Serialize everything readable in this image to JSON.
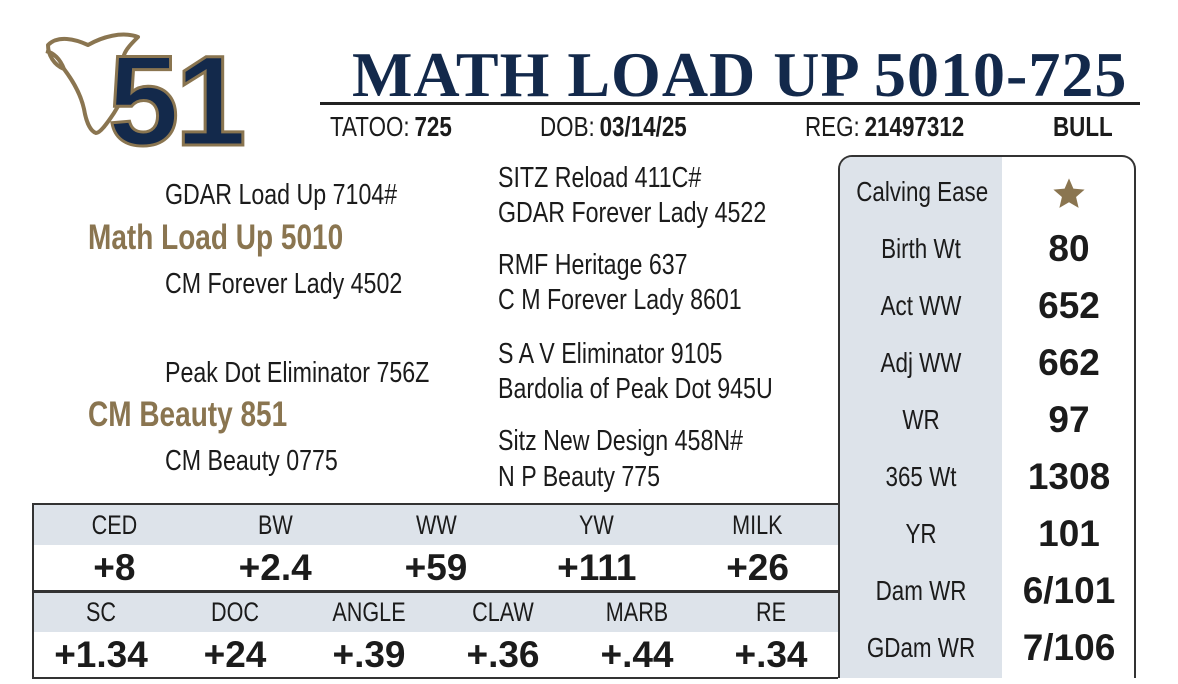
{
  "lot": "51",
  "title": "MATH LOAD UP 5010-725",
  "info": {
    "tattoo_label": "TATOO:",
    "tattoo": "725",
    "dob_label": "DOB:",
    "dob": "03/14/25",
    "reg_label": "REG:",
    "reg": "21497312",
    "sex": "BULL"
  },
  "pedigree": {
    "sire": "Math Load Up 5010",
    "sire_sire": "GDAR Load Up 7104#",
    "sire_dam": "CM Forever Lady 4502",
    "dam": "CM Beauty 851",
    "dam_sire": "Peak Dot Eliminator 756Z",
    "dam_dam": "CM Beauty 0775",
    "grandparents": [
      "SITZ Reload 411C#",
      "GDAR Forever Lady 4522",
      "RMF Heritage 637",
      "C M Forever Lady 8601",
      "S A V Eliminator 9105",
      "Bardolia of Peak Dot 945U",
      "Sitz New Design 458N#",
      "N P Beauty 775"
    ]
  },
  "stats": [
    {
      "label": "Calving Ease"
    },
    {
      "label": "Birth Wt",
      "value": "80"
    },
    {
      "label": "Act WW",
      "value": "652"
    },
    {
      "label": "Adj WW",
      "value": "662"
    },
    {
      "label": "WR",
      "value": "97"
    },
    {
      "label": "365 Wt",
      "value": "1308"
    },
    {
      "label": "YR",
      "value": "101"
    },
    {
      "label": "Dam WR",
      "value": "6/101"
    },
    {
      "label": "GDam WR",
      "value": "7/106"
    }
  ],
  "epds": [
    {
      "headers": [
        "CED",
        "BW",
        "WW",
        "YW",
        "MILK"
      ],
      "values": [
        "+8",
        "+2.4",
        "+59",
        "+111",
        "+26"
      ]
    },
    {
      "headers": [
        "SC",
        "DOC",
        "ANGLE",
        "CLAW",
        "MARB",
        "RE"
      ],
      "values": [
        "+1.34",
        "+24",
        "+.39",
        "+.36",
        "+.44",
        "+.34"
      ]
    }
  ]
}
